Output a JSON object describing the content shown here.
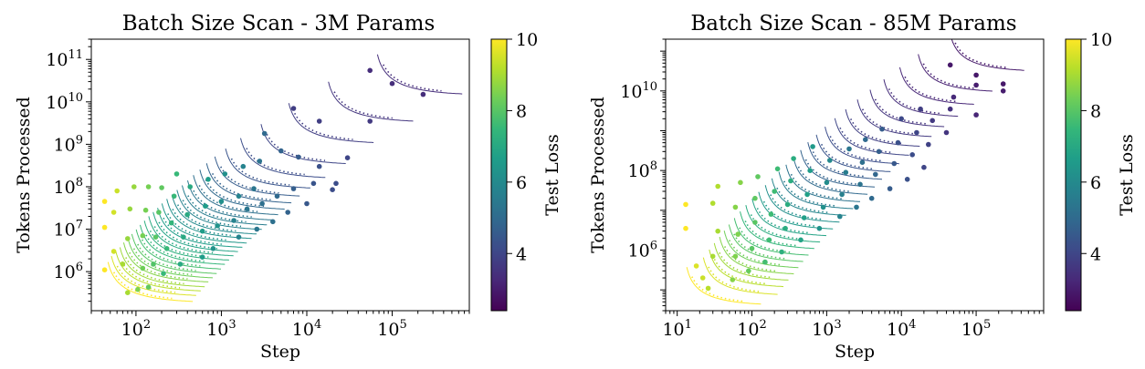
{
  "colorbar": {
    "label": "Test Loss",
    "ticks": [
      4,
      6,
      8,
      10
    ],
    "range": [
      2.4,
      10
    ],
    "colormap": "viridis",
    "stops": [
      "#440154",
      "#482878",
      "#3e4989",
      "#31688e",
      "#26828e",
      "#1f9e89",
      "#35b779",
      "#6ece58",
      "#b5de2b",
      "#fde725"
    ]
  },
  "chart_data": [
    {
      "type": "scatter",
      "title": "Batch Size Scan - 3M Params",
      "xlabel": "Step",
      "ylabel": "Tokens Processed",
      "xscale": "log",
      "yscale": "log",
      "xlim": [
        30,
        800000
      ],
      "ylim": [
        120000,
        300000000000
      ],
      "xticks": [
        {
          "v": 100,
          "mant": "10",
          "exp": "2"
        },
        {
          "v": 1000,
          "mant": "10",
          "exp": "3"
        },
        {
          "v": 10000,
          "mant": "10",
          "exp": "4"
        },
        {
          "v": 100000,
          "mant": "10",
          "exp": "5"
        }
      ],
      "yticks": [
        {
          "v": 1000000,
          "mant": "10",
          "exp": "6"
        },
        {
          "v": 10000000,
          "mant": "10",
          "exp": "7"
        },
        {
          "v": 100000000,
          "mant": "10",
          "exp": "8"
        },
        {
          "v": 1000000000,
          "mant": "10",
          "exp": "9"
        },
        {
          "v": 10000000000,
          "mant": "10",
          "exp": "10"
        },
        {
          "v": 100000000000,
          "mant": "10",
          "exp": "11"
        }
      ],
      "grid": false,
      "fit_series": [
        {
          "loss": 10.0,
          "smin": 42,
          "emin": 180000,
          "B": 1.0
        },
        {
          "loss": 9.6,
          "smin": 46,
          "emin": 250000,
          "B": 1.0
        },
        {
          "loss": 9.2,
          "smin": 52,
          "emin": 320000,
          "B": 1.0
        },
        {
          "loss": 8.9,
          "smin": 58,
          "emin": 400000,
          "B": 1.0
        },
        {
          "loss": 8.6,
          "smin": 64,
          "emin": 520000,
          "B": 1.0
        },
        {
          "loss": 8.3,
          "smin": 72,
          "emin": 650000,
          "B": 1.0
        },
        {
          "loss": 8.0,
          "smin": 80,
          "emin": 820000,
          "B": 1.0
        },
        {
          "loss": 7.7,
          "smin": 90,
          "emin": 1050000,
          "B": 1.0
        },
        {
          "loss": 7.4,
          "smin": 100,
          "emin": 1350000,
          "B": 1.0
        },
        {
          "loss": 7.2,
          "smin": 112,
          "emin": 1700000,
          "B": 1.0
        },
        {
          "loss": 7.0,
          "smin": 126,
          "emin": 2150000,
          "B": 1.0
        },
        {
          "loss": 6.8,
          "smin": 142,
          "emin": 2700000,
          "B": 1.0
        },
        {
          "loss": 6.6,
          "smin": 160,
          "emin": 3400000,
          "B": 1.0
        },
        {
          "loss": 6.4,
          "smin": 180,
          "emin": 4300000,
          "B": 1.0
        },
        {
          "loss": 6.2,
          "smin": 205,
          "emin": 5500000,
          "B": 1.0
        },
        {
          "loss": 6.0,
          "smin": 235,
          "emin": 7000000,
          "B": 1.0
        },
        {
          "loss": 5.8,
          "smin": 270,
          "emin": 9000000,
          "B": 1.0
        },
        {
          "loss": 5.6,
          "smin": 310,
          "emin": 11500000,
          "B": 1.0
        },
        {
          "loss": 5.4,
          "smin": 360,
          "emin": 15000000,
          "B": 1.0
        },
        {
          "loss": 5.2,
          "smin": 420,
          "emin": 20000000,
          "B": 1.0
        },
        {
          "loss": 5.0,
          "smin": 500,
          "emin": 27000000,
          "B": 1.0
        },
        {
          "loss": 4.8,
          "smin": 600,
          "emin": 38000000,
          "B": 1.0
        },
        {
          "loss": 4.6,
          "smin": 750,
          "emin": 55000000,
          "B": 1.0
        },
        {
          "loss": 4.4,
          "smin": 1000,
          "emin": 85000000,
          "B": 1.0
        },
        {
          "loss": 4.2,
          "smin": 1500,
          "emin": 150000000,
          "B": 1.0
        },
        {
          "loss": 4.0,
          "smin": 2600,
          "emin": 320000000,
          "B": 1.0
        },
        {
          "loss": 3.8,
          "smin": 5500,
          "emin": 1000000000,
          "B": 1.0
        },
        {
          "loss": 3.6,
          "smin": 16000,
          "emin": 3200000000,
          "B": 1.0
        },
        {
          "loss": 3.4,
          "smin": 60000,
          "emin": 14000000000,
          "B": 1.0
        }
      ],
      "points": [
        [
          43,
          1100000,
          10.0
        ],
        [
          43,
          11000000,
          10.0
        ],
        [
          43,
          45000000,
          10.0
        ],
        [
          55,
          3000000,
          9.5
        ],
        [
          55,
          25000000,
          9.5
        ],
        [
          60,
          80000000,
          9.4
        ],
        [
          80,
          320000,
          9.0
        ],
        [
          70,
          1500000,
          9.0
        ],
        [
          80,
          6000000,
          8.8
        ],
        [
          85,
          30000000,
          8.8
        ],
        [
          95,
          100000000,
          8.8
        ],
        [
          105,
          380000,
          8.5
        ],
        [
          120,
          1200000,
          8.3
        ],
        [
          120,
          7000000,
          8.4
        ],
        [
          130,
          28000000,
          8.4
        ],
        [
          140,
          100000000,
          8.4
        ],
        [
          140,
          430000,
          8.1
        ],
        [
          160,
          1500000,
          7.9
        ],
        [
          170,
          6500000,
          8.0
        ],
        [
          185,
          25000000,
          8.0
        ],
        [
          200,
          95000000,
          8.1
        ],
        [
          210,
          900000,
          7.5
        ],
        [
          230,
          3500000,
          7.5
        ],
        [
          260,
          14000000,
          7.4
        ],
        [
          280,
          60000000,
          7.5
        ],
        [
          300,
          200000000,
          7.5
        ],
        [
          330,
          1500000,
          7.0
        ],
        [
          360,
          6500000,
          7.0
        ],
        [
          400,
          22000000,
          7.0
        ],
        [
          430,
          100000000,
          7.0
        ],
        [
          600,
          2200000,
          6.6
        ],
        [
          600,
          9000000,
          6.6
        ],
        [
          650,
          35000000,
          6.6
        ],
        [
          700,
          150000000,
          6.6
        ],
        [
          800,
          3500000,
          6.3
        ],
        [
          900,
          12000000,
          6.3
        ],
        [
          1000,
          45000000,
          6.2
        ],
        [
          1100,
          200000000,
          6.2
        ],
        [
          1600,
          6500000,
          5.8
        ],
        [
          1400,
          16000000,
          5.8
        ],
        [
          1600,
          60000000,
          5.8
        ],
        [
          1800,
          300000000,
          5.8
        ],
        [
          2000,
          30000000,
          5.4
        ],
        [
          2400,
          90000000,
          5.4
        ],
        [
          2800,
          400000000,
          5.3
        ],
        [
          2600,
          10000000,
          5.4
        ],
        [
          3000,
          40000000,
          5.2
        ],
        [
          3200,
          1800000000,
          5.0
        ],
        [
          4000,
          15000000,
          5.2
        ],
        [
          4500,
          60000000,
          5.0
        ],
        [
          5000,
          700000000,
          4.8
        ],
        [
          6000,
          25000000,
          4.8
        ],
        [
          7000,
          90000000,
          4.7
        ],
        [
          8000,
          500000000,
          4.6
        ],
        [
          10000,
          40000000,
          4.5
        ],
        [
          12000,
          120000000,
          4.4
        ],
        [
          14000,
          300000000,
          4.3
        ],
        [
          20000,
          85000000,
          4.2
        ],
        [
          22000,
          120000000,
          4.2
        ],
        [
          30000,
          480000000,
          4.0
        ],
        [
          7000,
          7000000000,
          3.8
        ],
        [
          14000,
          3500000000,
          3.8
        ],
        [
          55000,
          3500000000,
          3.7
        ],
        [
          55000,
          55000000000,
          3.4
        ],
        [
          100000,
          27000000000,
          3.4
        ],
        [
          230000,
          15000000000,
          3.4
        ]
      ]
    },
    {
      "type": "scatter",
      "title": "Batch Size Scan - 85M Params",
      "xlabel": "Step",
      "ylabel": "Tokens Processed",
      "xscale": "log",
      "yscale": "log",
      "xlim": [
        7,
        800000
      ],
      "ylim": [
        30000,
        200000000000
      ],
      "xticks": [
        {
          "v": 10,
          "mant": "10",
          "exp": "1"
        },
        {
          "v": 100,
          "mant": "10",
          "exp": "2"
        },
        {
          "v": 1000,
          "mant": "10",
          "exp": "3"
        },
        {
          "v": 10000,
          "mant": "10",
          "exp": "4"
        },
        {
          "v": 100000,
          "mant": "10",
          "exp": "5"
        }
      ],
      "yticks": [
        {
          "v": 1000000,
          "mant": "10",
          "exp": "6"
        },
        {
          "v": 100000000,
          "mant": "10",
          "exp": "8"
        },
        {
          "v": 10000000000,
          "mant": "10",
          "exp": "10"
        }
      ],
      "grid": false,
      "fit_series": [
        {
          "loss": 10.0,
          "smin": 12,
          "emin": 40000,
          "B": 1.0
        },
        {
          "loss": 9.6,
          "smin": 20,
          "emin": 70000,
          "B": 1.0
        },
        {
          "loss": 9.2,
          "smin": 24,
          "emin": 110000,
          "B": 1.0
        },
        {
          "loss": 8.9,
          "smin": 28,
          "emin": 160000,
          "B": 1.0
        },
        {
          "loss": 8.6,
          "smin": 33,
          "emin": 230000,
          "B": 1.0
        },
        {
          "loss": 8.3,
          "smin": 38,
          "emin": 330000,
          "B": 1.0
        },
        {
          "loss": 8.0,
          "smin": 44,
          "emin": 470000,
          "B": 1.0
        },
        {
          "loss": 7.7,
          "smin": 52,
          "emin": 680000,
          "B": 1.0
        },
        {
          "loss": 7.4,
          "smin": 62,
          "emin": 1000000,
          "B": 1.0
        },
        {
          "loss": 7.1,
          "smin": 74,
          "emin": 1450000,
          "B": 1.0
        },
        {
          "loss": 6.8,
          "smin": 90,
          "emin": 2100000,
          "B": 1.0
        },
        {
          "loss": 6.5,
          "smin": 110,
          "emin": 3100000,
          "B": 1.0
        },
        {
          "loss": 6.2,
          "smin": 135,
          "emin": 4600000,
          "B": 1.0
        },
        {
          "loss": 5.9,
          "smin": 165,
          "emin": 6800000,
          "B": 1.0
        },
        {
          "loss": 5.6,
          "smin": 205,
          "emin": 10000000,
          "B": 1.0
        },
        {
          "loss": 5.3,
          "smin": 255,
          "emin": 15000000,
          "B": 1.0
        },
        {
          "loss": 5.0,
          "smin": 320,
          "emin": 23000000,
          "B": 1.0
        },
        {
          "loss": 4.8,
          "smin": 400,
          "emin": 35000000,
          "B": 1.0
        },
        {
          "loss": 4.6,
          "smin": 500,
          "emin": 55000000,
          "B": 1.0
        },
        {
          "loss": 4.4,
          "smin": 650,
          "emin": 85000000,
          "B": 1.0
        },
        {
          "loss": 4.2,
          "smin": 850,
          "emin": 135000000,
          "B": 1.0
        },
        {
          "loss": 4.0,
          "smin": 1150,
          "emin": 220000000,
          "B": 1.0
        },
        {
          "loss": 3.85,
          "smin": 1600,
          "emin": 370000000,
          "B": 1.0
        },
        {
          "loss": 3.7,
          "smin": 2300,
          "emin": 650000000,
          "B": 1.0
        },
        {
          "loss": 3.55,
          "smin": 3400,
          "emin": 1150000000,
          "B": 1.0
        },
        {
          "loss": 3.4,
          "smin": 5200,
          "emin": 2100000000,
          "B": 1.0
        },
        {
          "loss": 3.25,
          "smin": 8500,
          "emin": 4200000000,
          "B": 1.0
        },
        {
          "loss": 3.1,
          "smin": 15000,
          "emin": 9000000000,
          "B": 1.0
        },
        {
          "loss": 2.95,
          "smin": 40000,
          "emin": 30000000000,
          "B": 1.0
        }
      ],
      "points": [
        [
          13,
          3500000,
          10.0
        ],
        [
          13,
          14000000,
          10.0
        ],
        [
          18,
          400000,
          9.6
        ],
        [
          22,
          200000,
          9.4
        ],
        [
          26,
          110000,
          9.2
        ],
        [
          30,
          700000,
          9.0
        ],
        [
          35,
          3000000,
          9.0
        ],
        [
          30,
          15000000,
          9.1
        ],
        [
          35,
          40000000,
          9.1
        ],
        [
          55,
          180000,
          8.6
        ],
        [
          60,
          700000,
          8.5
        ],
        [
          65,
          2500000,
          8.5
        ],
        [
          60,
          12000000,
          8.6
        ],
        [
          70,
          50000000,
          8.6
        ],
        [
          90,
          300000,
          8.2
        ],
        [
          100,
          1100000,
          8.0
        ],
        [
          110,
          5000000,
          8.0
        ],
        [
          110,
          20000000,
          8.1
        ],
        [
          120,
          70000000,
          8.1
        ],
        [
          150,
          500000,
          7.7
        ],
        [
          170,
          1800000,
          7.6
        ],
        [
          180,
          8000000,
          7.6
        ],
        [
          200,
          30000000,
          7.6
        ],
        [
          220,
          110000000,
          7.6
        ],
        [
          250,
          900000,
          7.2
        ],
        [
          280,
          3500000,
          7.1
        ],
        [
          300,
          14000000,
          7.1
        ],
        [
          330,
          55000000,
          7.1
        ],
        [
          360,
          200000000,
          7.1
        ],
        [
          450,
          1800000,
          6.8
        ],
        [
          500,
          6500000,
          6.7
        ],
        [
          550,
          25000000,
          6.7
        ],
        [
          600,
          100000000,
          6.6
        ],
        [
          650,
          400000000,
          6.5
        ],
        [
          800,
          3500000,
          6.3
        ],
        [
          900,
          12000000,
          6.2
        ],
        [
          1000,
          50000000,
          6.1
        ],
        [
          1100,
          180000000,
          6.0
        ],
        [
          1500,
          7000000,
          5.8
        ],
        [
          1600,
          25000000,
          5.7
        ],
        [
          1800,
          90000000,
          5.6
        ],
        [
          2000,
          350000000,
          5.4
        ],
        [
          2500,
          12000000,
          5.4
        ],
        [
          2800,
          45000000,
          5.3
        ],
        [
          3000,
          160000000,
          5.2
        ],
        [
          3300,
          600000000,
          5.0
        ],
        [
          4000,
          20000000,
          5.0
        ],
        [
          4500,
          80000000,
          4.9
        ],
        [
          5000,
          300000000,
          4.7
        ],
        [
          5500,
          1100000000,
          4.6
        ],
        [
          7000,
          35000000,
          4.6
        ],
        [
          8000,
          150000000,
          4.5
        ],
        [
          9000,
          500000000,
          4.3
        ],
        [
          10000,
          2000000000,
          4.1
        ],
        [
          12000,
          60000000,
          4.3
        ],
        [
          14000,
          250000000,
          4.2
        ],
        [
          16000,
          900000000,
          4.0
        ],
        [
          18000,
          3500000000,
          3.8
        ],
        [
          20000,
          120000000,
          4.0
        ],
        [
          23000,
          450000000,
          3.9
        ],
        [
          26000,
          1800000000,
          3.7
        ],
        [
          40000,
          900000000,
          3.6
        ],
        [
          45000,
          3500000000,
          3.5
        ],
        [
          50000,
          7000000000,
          3.3
        ],
        [
          100000,
          2500000000,
          3.2
        ],
        [
          100000,
          14000000000,
          3.0
        ],
        [
          230000,
          10000000000,
          3.0
        ],
        [
          45000,
          45000000000,
          2.9
        ],
        [
          100000,
          25000000000,
          2.9
        ],
        [
          230000,
          15000000000,
          2.9
        ]
      ]
    }
  ]
}
